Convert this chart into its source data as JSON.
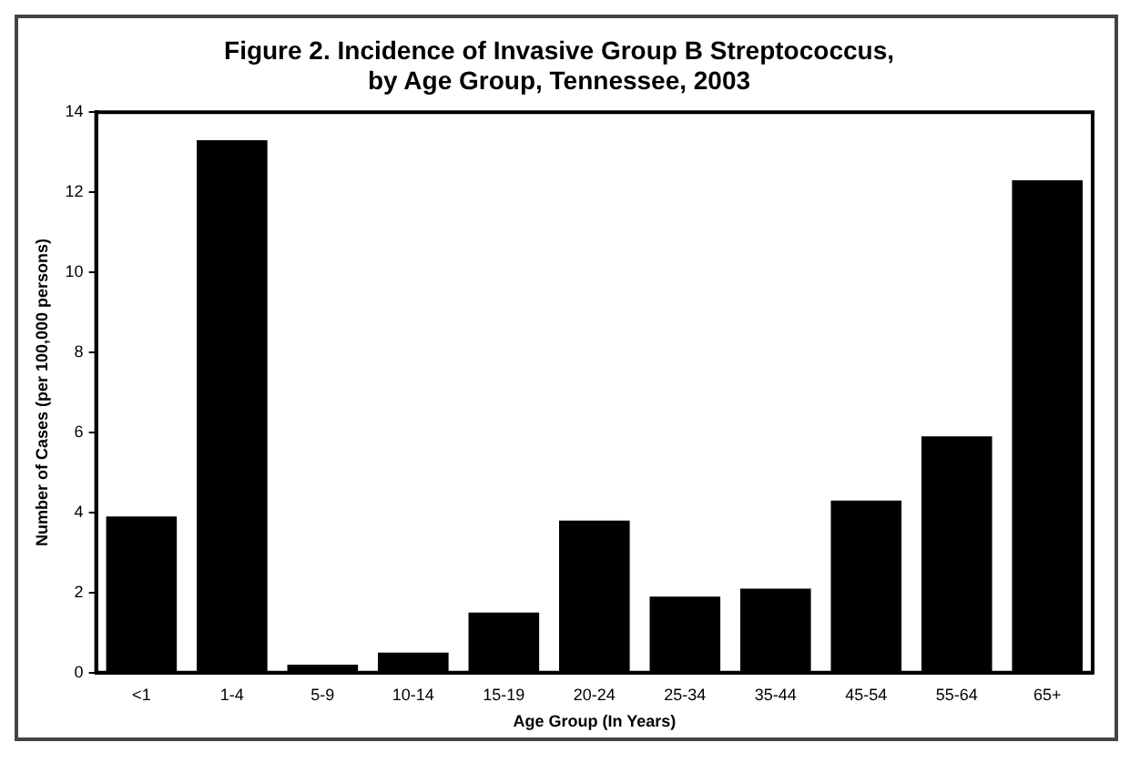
{
  "chart_data": {
    "type": "bar",
    "title": "Figure 2. Incidence of Invasive Group B Streptococcus,\nby Age Group, Tennessee, 2003",
    "xlabel": "Age Group (In Years)",
    "ylabel": "Number of Cases (per 100,000 persons)",
    "categories": [
      "<1",
      "1-4",
      "5-9",
      "10-14",
      "15-19",
      "20-24",
      "25-34",
      "35-44",
      "45-54",
      "55-64",
      "65+"
    ],
    "values": [
      3.9,
      13.3,
      0.2,
      0.5,
      1.5,
      3.8,
      1.9,
      2.1,
      4.3,
      5.9,
      12.3
    ],
    "color": "#000000",
    "ylim": [
      0,
      14
    ],
    "yticks": [
      0,
      2,
      4,
      6,
      8,
      10,
      12,
      14
    ],
    "grid": false,
    "legend": false
  }
}
